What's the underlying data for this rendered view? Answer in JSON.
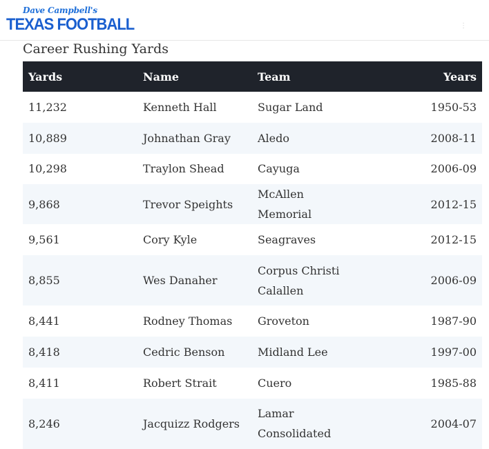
{
  "header": {
    "logo_script": "Dave Campbell's",
    "logo_main": "TEXAS FOOTBALL",
    "menu_glyph": "⋮"
  },
  "page_title": "Career Rushing Yards",
  "table": {
    "columns": [
      "Yards",
      "Name",
      "Team",
      "Years"
    ],
    "rows": [
      {
        "yards": "11,232",
        "name": "Kenneth Hall",
        "team": "Sugar Land",
        "years": "1950-53"
      },
      {
        "yards": "10,889",
        "name": "Johnathan Gray",
        "team": "Aledo",
        "years": "2008-11"
      },
      {
        "yards": "10,298",
        "name": "Traylon Shead",
        "team": "Cayuga",
        "years": "2006-09"
      },
      {
        "yards": "9,868",
        "name": "Trevor Speights",
        "team": "McAllen Memorial",
        "years": "2012-15"
      },
      {
        "yards": "9,561",
        "name": "Cory Kyle",
        "team": "Seagraves",
        "years": "2012-15"
      },
      {
        "yards": "8,855",
        "name": "Wes Danaher",
        "team": "Corpus Christi Calallen",
        "years": "2006-09"
      },
      {
        "yards": "8,441",
        "name": "Rodney Thomas",
        "team": "Groveton",
        "years": "1987-90"
      },
      {
        "yards": "8,418",
        "name": "Cedric Benson",
        "team": "Midland Lee",
        "years": "1997-00"
      },
      {
        "yards": "8,411",
        "name": "Robert Strait",
        "team": "Cuero",
        "years": "1985-88"
      },
      {
        "yards": "8,246",
        "name": "Jacquizz Rodgers",
        "team": "Lamar Consolidated",
        "years": "2004-07"
      }
    ]
  }
}
